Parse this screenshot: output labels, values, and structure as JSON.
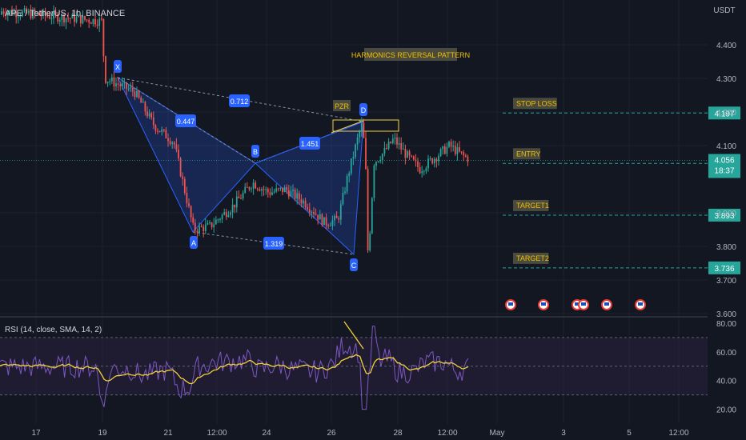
{
  "header": {
    "symbol": "APE / TetherUS, 1h, BINANCE"
  },
  "currency": "USDT",
  "chart_data": [
    {
      "type": "candlestick",
      "title": "HARMONICS REVERSAL PATTERN",
      "ylim": [
        3.6,
        4.5
      ],
      "y_ticks": [
        "4.400",
        "4.300",
        "4.200",
        "4.100",
        "3.900",
        "3.800",
        "3.700",
        "3.600"
      ],
      "x_ticks": [
        "17",
        "19",
        "21",
        "12:00",
        "24",
        "26",
        "28",
        "12:00",
        "May",
        "3",
        "5",
        "12:00"
      ],
      "price_path": [
        [
          0,
          4.52
        ],
        [
          4,
          4.51
        ],
        [
          8,
          4.5
        ],
        [
          12,
          4.49
        ],
        [
          16,
          4.5
        ],
        [
          19,
          4.47
        ],
        [
          19.1,
          4.3
        ],
        [
          20,
          4.26
        ],
        [
          20.6,
          4.16
        ],
        [
          21.2,
          4.11
        ],
        [
          21.8,
          3.85
        ],
        [
          22.3,
          3.86
        ],
        [
          23,
          3.92
        ],
        [
          23.6,
          3.99
        ],
        [
          24.1,
          3.96
        ],
        [
          24.6,
          3.97
        ],
        [
          25.2,
          3.93
        ],
        [
          25.8,
          3.87
        ],
        [
          26.2,
          3.88
        ],
        [
          26.5,
          4.01
        ],
        [
          26.8,
          4.12
        ],
        [
          26.95,
          4.17
        ],
        [
          27.05,
          4.02
        ],
        [
          27.12,
          3.76
        ],
        [
          27.3,
          4.05
        ],
        [
          27.6,
          4.08
        ],
        [
          27.9,
          4.12
        ],
        [
          28.3,
          4.07
        ],
        [
          28.7,
          4.03
        ],
        [
          29.1,
          4.06
        ],
        [
          29.6,
          4.1
        ],
        [
          30,
          4.07
        ],
        [
          30.2,
          4.06
        ]
      ],
      "pattern": {
        "points": [
          {
            "name": "X",
            "t": 19.4,
            "price": 4.31
          },
          {
            "name": "A",
            "t": 21.8,
            "price": 3.83
          },
          {
            "name": "B",
            "t": 23.6,
            "price": 4.0
          },
          {
            "name": "C",
            "t": 27.1,
            "price": 3.76
          },
          {
            "name": "D",
            "t": 27.2,
            "price": 4.18
          }
        ],
        "ratios": [
          "0.712",
          "0.447",
          "1.451",
          "1.319"
        ],
        "pzr_label": "PZR"
      },
      "levels": [
        {
          "label": "STOP LOSS",
          "price": 4.197,
          "value": "4.197"
        },
        {
          "label": "ENTRY",
          "price": 4.047,
          "value": "4.047"
        },
        {
          "label": "TARGET1",
          "price": 3.893,
          "value": "3.893"
        },
        {
          "label": "TARGET2",
          "price": 3.736,
          "value": "3.736"
        }
      ],
      "last_price": {
        "value": "4.056",
        "countdown": "18:37"
      },
      "event_markers": 6,
      "colors": {
        "up": "#26a69a",
        "down": "#ef5350",
        "pattern": "#2962ff",
        "level": "#26a69a",
        "label_bg": "#4a4a3e",
        "label_text": "#f0c000"
      }
    },
    {
      "type": "line",
      "title": "RSI (14, close, SMA, 14, 2)",
      "ylim": [
        10,
        85
      ],
      "y_ticks": [
        "80.00",
        "60.00",
        "40.00",
        "20.00"
      ],
      "bands": [
        70,
        50,
        30
      ],
      "series": [
        {
          "name": "RSI",
          "color": "#7e57c2"
        },
        {
          "name": "SMA",
          "color": "#f0d13a"
        }
      ]
    }
  ]
}
